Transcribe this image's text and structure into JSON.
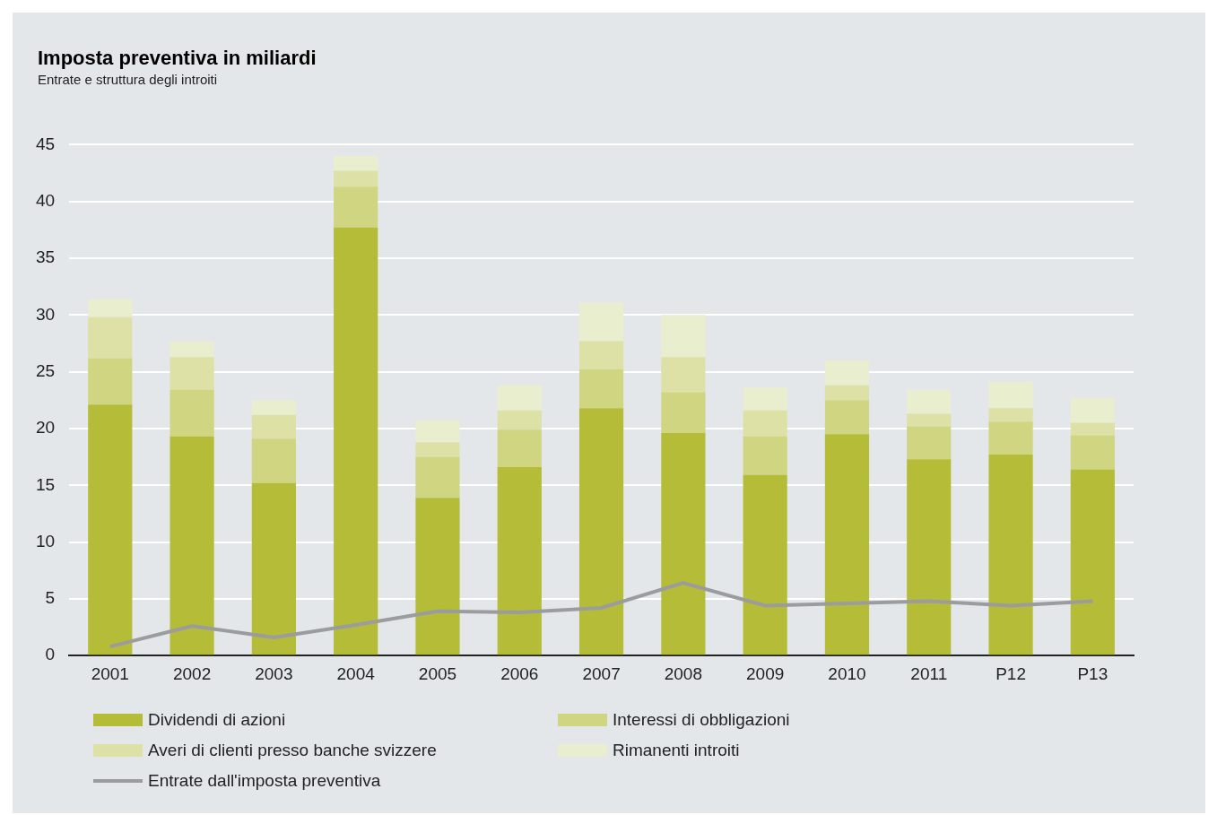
{
  "chart_data": {
    "type": "bar",
    "title": "Imposta preventiva in miliardi",
    "subtitle": "Entrate e struttura degli introiti",
    "categories": [
      "2001",
      "2002",
      "2003",
      "2004",
      "2005",
      "2006",
      "2007",
      "2008",
      "2009",
      "2010",
      "2011",
      "P12",
      "P13"
    ],
    "stacked": true,
    "ylim": [
      0,
      45
    ],
    "yticks": [
      0,
      5,
      10,
      15,
      20,
      25,
      30,
      35,
      40,
      45
    ],
    "grid": "y",
    "legend": "bottom",
    "series": [
      {
        "name": "Dividendi di azioni",
        "color": "#b5bc38",
        "values": [
          22.1,
          19.3,
          15.2,
          37.7,
          13.9,
          16.6,
          21.8,
          19.6,
          15.9,
          19.5,
          17.3,
          17.7,
          16.4
        ]
      },
      {
        "name": "Interessi di obbligazioni",
        "color": "#d0d581",
        "values": [
          4.1,
          4.1,
          3.9,
          3.6,
          3.6,
          3.3,
          3.4,
          3.6,
          3.4,
          3.0,
          2.9,
          2.9,
          3.0
        ]
      },
      {
        "name": "Averi di clienti presso banche svizzere",
        "color": "#dde1a6",
        "values": [
          3.6,
          2.9,
          2.1,
          1.4,
          1.3,
          1.7,
          2.5,
          3.1,
          2.3,
          1.3,
          1.1,
          1.2,
          1.1
        ]
      },
      {
        "name": "Rimanenti introiti",
        "color": "#e9eecf",
        "values": [
          1.6,
          1.4,
          1.3,
          1.3,
          1.9,
          2.2,
          3.4,
          3.7,
          2.0,
          2.2,
          2.1,
          2.3,
          2.2
        ]
      },
      {
        "name": "Entrate dall'imposta preventiva",
        "type": "line",
        "color": "#9b9c9e",
        "values": [
          0.8,
          2.6,
          1.6,
          2.7,
          3.9,
          3.8,
          4.2,
          6.4,
          4.4,
          4.6,
          4.8,
          4.4,
          4.8
        ]
      }
    ]
  }
}
